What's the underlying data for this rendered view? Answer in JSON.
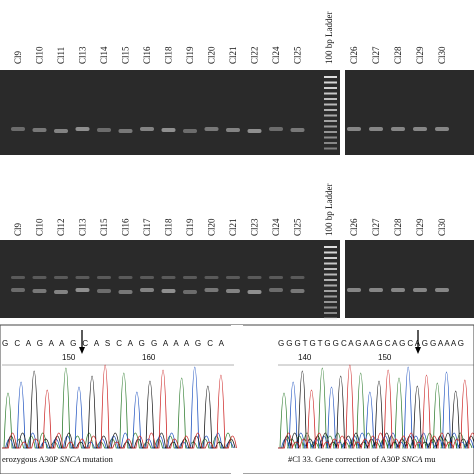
{
  "gels": [
    {
      "lanes_left": [
        "Cl9",
        "Cl10",
        "Cl11",
        "Cl13",
        "Cl14",
        "Cl15",
        "Cl16",
        "Cl18",
        "Cl19",
        "Cl20",
        "Cl21",
        "Cl22",
        "Cl24",
        "Cl25"
      ],
      "ladder": "100 bp Ladder",
      "lanes_right": [
        "Cl26",
        "Cl27",
        "Cl28",
        "Cl29",
        "Cl30"
      ]
    },
    {
      "lanes_left": [
        "Cl9",
        "Cl10",
        "Cl12",
        "Cl13",
        "Cl15",
        "Cl16",
        "Cl17",
        "Cl18",
        "Cl19",
        "Cl20",
        "Cl21",
        "Cl23",
        "Cl24",
        "Cl25"
      ],
      "ladder": "100 bp Ladder",
      "lanes_right": [
        "Cl26",
        "Cl27",
        "Cl28",
        "Cl29",
        "Cl30"
      ]
    }
  ],
  "chromatograms": [
    {
      "sequence": "G C A G A A G C A S C A G G A A A G C A",
      "positions": [
        "150",
        "160"
      ],
      "caption_before": "erozygous A30P ",
      "caption_gene": "SNCA",
      "caption_after": " mutation"
    },
    {
      "sequence": "G G G T G T G G C A G A A G C A G C A G G A A A G",
      "positions": [
        "140",
        "150"
      ],
      "caption_before": "#Cl 33. Gene correction of A30P ",
      "caption_gene": "SNCA",
      "caption_after": " mu"
    }
  ]
}
